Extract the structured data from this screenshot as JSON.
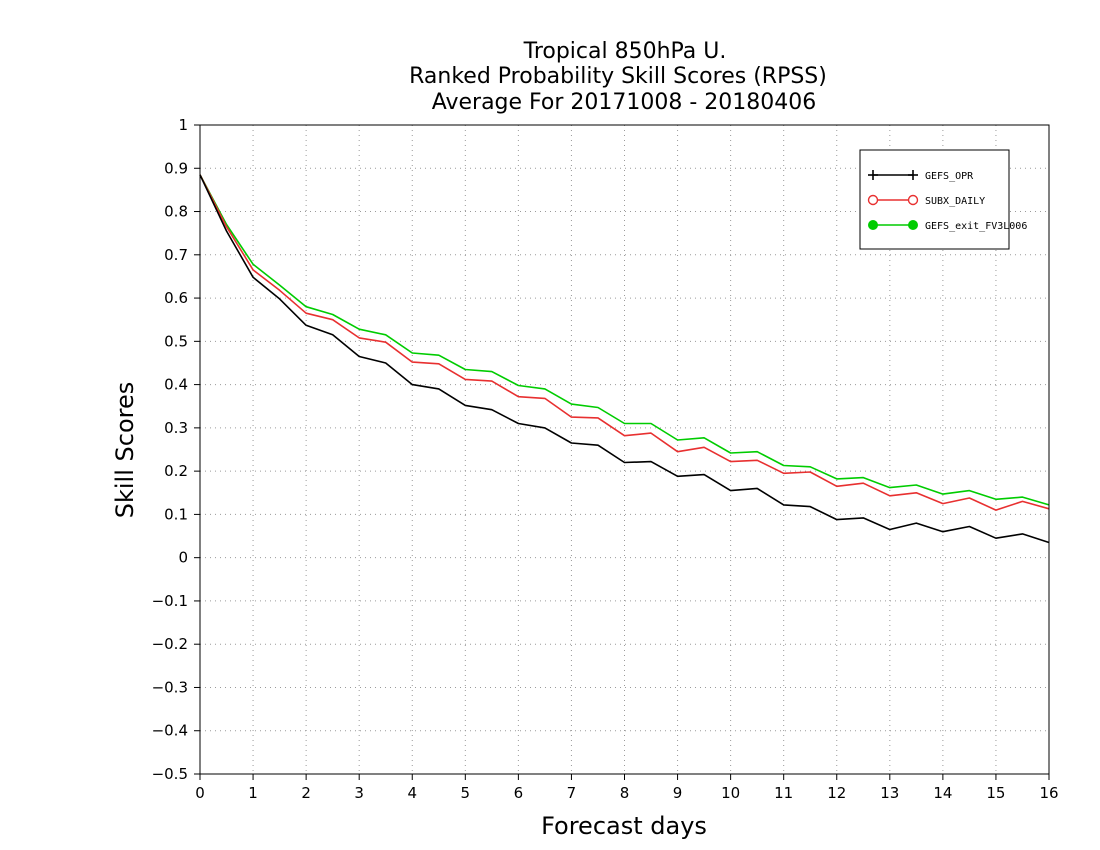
{
  "chart_data": {
    "type": "line",
    "title": [
      "Tropical 850hPa U.",
      "Ranked Probability Skill Scores (RPSS)",
      "Average For 20171008 - 20180406"
    ],
    "xlabel": "Forecast days",
    "ylabel": "Skill Scores",
    "xlim": [
      0,
      16
    ],
    "ylim": [
      -0.5,
      1
    ],
    "x_ticks": [
      "0",
      "1",
      "2",
      "3",
      "4",
      "5",
      "6",
      "7",
      "8",
      "9",
      "10",
      "11",
      "12",
      "13",
      "14",
      "15",
      "16"
    ],
    "y_ticks": [
      "−0.5",
      "−0.4",
      "−0.3",
      "−0.2",
      "−0.1",
      "0",
      "0.1",
      "0.2",
      "0.3",
      "0.4",
      "0.5",
      "0.6",
      "0.7",
      "0.8",
      "0.9",
      "1"
    ],
    "grid": true,
    "legend_position": "top-right",
    "x": [
      0,
      0.5,
      1,
      1.5,
      2,
      2.5,
      3,
      3.5,
      4,
      4.5,
      5,
      5.5,
      6,
      6.5,
      7,
      7.5,
      8,
      8.5,
      9,
      9.5,
      10,
      10.5,
      11,
      11.5,
      12,
      12.5,
      13,
      13.5,
      14,
      14.5,
      15,
      15.5,
      16
    ],
    "series": [
      {
        "name": "GEFS_OPR",
        "color": "#000000",
        "marker": "plus",
        "values": [
          0.885,
          0.755,
          0.648,
          0.598,
          0.537,
          0.515,
          0.465,
          0.45,
          0.4,
          0.39,
          0.352,
          0.342,
          0.31,
          0.3,
          0.265,
          0.26,
          0.22,
          0.222,
          0.188,
          0.192,
          0.155,
          0.16,
          0.122,
          0.118,
          0.088,
          0.092,
          0.065,
          0.08,
          0.06,
          0.072,
          0.045,
          0.055,
          0.035
        ]
      },
      {
        "name": "SUBX_DAILY",
        "color": "#e83030",
        "marker": "open-circle",
        "values": [
          0.885,
          0.765,
          0.665,
          0.618,
          0.565,
          0.55,
          0.508,
          0.498,
          0.452,
          0.448,
          0.412,
          0.408,
          0.372,
          0.368,
          0.325,
          0.323,
          0.282,
          0.288,
          0.245,
          0.255,
          0.222,
          0.225,
          0.195,
          0.198,
          0.165,
          0.172,
          0.143,
          0.15,
          0.125,
          0.138,
          0.11,
          0.13,
          0.113
        ]
      },
      {
        "name": "GEFS_exit_FV3L006",
        "color": "#00cc00",
        "marker": "filled-circle",
        "values": [
          0.885,
          0.77,
          0.678,
          0.63,
          0.58,
          0.562,
          0.528,
          0.515,
          0.473,
          0.468,
          0.435,
          0.43,
          0.398,
          0.39,
          0.355,
          0.347,
          0.31,
          0.31,
          0.272,
          0.277,
          0.242,
          0.245,
          0.213,
          0.21,
          0.182,
          0.185,
          0.162,
          0.168,
          0.147,
          0.155,
          0.135,
          0.14,
          0.122
        ]
      }
    ]
  }
}
